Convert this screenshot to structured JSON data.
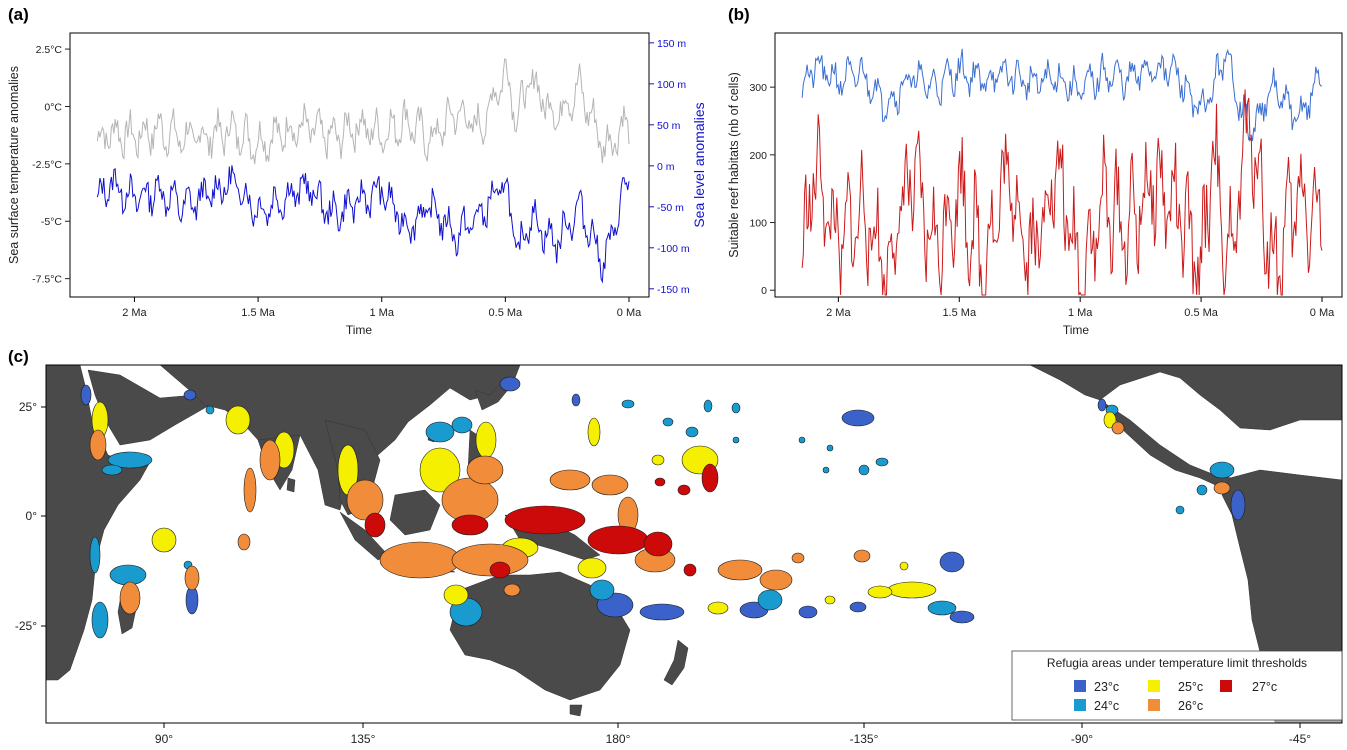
{
  "figure": {
    "panels": {
      "a": "(a)",
      "b": "(b)",
      "c": "(c)"
    }
  },
  "colors": {
    "sst": "#b5b5b5",
    "sea_level": "#1010d0",
    "land": "#4a4a4a",
    "land_light": "#a8a8a8",
    "t23": "#3a62c9",
    "t24": "#1a9bd0",
    "t25": "#f4f000",
    "t26": "#f08c3a",
    "t27": "#cc0a0a",
    "habitat_upper": "#3c6fd1",
    "habitat_lower": "#cc1a1a"
  },
  "chart_data": [
    {
      "id": "a",
      "type": "line",
      "xlabel": "Time",
      "ylabel": "Sea surface temperature anomalies",
      "y2label": "Sea level anomalies",
      "xticks": [
        "2 Ma",
        "1.5 Ma",
        "1 Ma",
        "0.5 Ma",
        "0 Ma"
      ],
      "xtick_values": [
        2,
        1.5,
        1,
        0.5,
        0
      ],
      "xlim": [
        2.2,
        0
      ],
      "yticks": [
        "2.5°C",
        "0°C",
        "-2.5°C",
        "-5°C",
        "-7.5°C"
      ],
      "ytick_values": [
        2.5,
        0,
        -2.5,
        -5,
        -7.5
      ],
      "ylim": [
        -8.3,
        3.2
      ],
      "y2ticks": [
        "150 m",
        "100 m",
        "50 m",
        "0 m",
        "-50 m",
        "-100 m",
        "-150 m"
      ],
      "y2tick_values": [
        150,
        100,
        50,
        0,
        -50,
        -100,
        -150
      ],
      "y2lim": [
        -160,
        162
      ],
      "series": [
        {
          "axis": "left",
          "color": "#b5b5b5",
          "x": [
            2.15,
            2.1,
            2.0,
            1.9,
            1.8,
            1.7,
            1.6,
            1.5,
            1.4,
            1.3,
            1.2,
            1.1,
            1.0,
            0.9,
            0.8,
            0.7,
            0.6,
            0.5,
            0.45,
            0.4,
            0.3,
            0.2,
            0.1,
            0.0
          ],
          "y": [
            -1.5,
            -1.1,
            -1.3,
            -1.0,
            -1.4,
            -1.3,
            -1.0,
            -1.6,
            -1.1,
            -0.9,
            -1.4,
            -0.8,
            -1.2,
            -0.6,
            -1.5,
            -0.2,
            -1.0,
            1.6,
            -0.5,
            1.2,
            -0.4,
            0.8,
            -1.8,
            -0.6
          ]
        },
        {
          "axis": "right",
          "color": "#1010d0",
          "x": [
            2.15,
            2.1,
            2.0,
            1.9,
            1.8,
            1.7,
            1.6,
            1.5,
            1.4,
            1.3,
            1.2,
            1.1,
            1.0,
            0.9,
            0.8,
            0.7,
            0.6,
            0.5,
            0.45,
            0.4,
            0.3,
            0.2,
            0.1,
            0.0
          ],
          "y": [
            -45,
            -20,
            -40,
            -30,
            -50,
            -35,
            -20,
            -55,
            -40,
            -25,
            -60,
            -45,
            -30,
            -75,
            -50,
            -85,
            -60,
            -20,
            -110,
            -60,
            -95,
            -50,
            -120,
            -10
          ]
        }
      ]
    },
    {
      "id": "b",
      "type": "line",
      "xlabel": "Time",
      "ylabel": "Suitable reef habitats (nb of cells)",
      "xticks": [
        "2 Ma",
        "1.5 Ma",
        "1 Ma",
        "0.5 Ma",
        "0 Ma"
      ],
      "xtick_values": [
        2,
        1.5,
        1,
        0.5,
        0
      ],
      "xlim": [
        2.2,
        0
      ],
      "yticks": [
        "0",
        "100",
        "200",
        "300"
      ],
      "ytick_values": [
        0,
        100,
        200,
        300
      ],
      "ylim": [
        -10,
        380
      ],
      "series": [
        {
          "color": "#3c6fd1",
          "x": [
            2.15,
            2.1,
            2.0,
            1.9,
            1.8,
            1.7,
            1.6,
            1.5,
            1.4,
            1.3,
            1.2,
            1.1,
            1.0,
            0.9,
            0.8,
            0.7,
            0.6,
            0.5,
            0.45,
            0.4,
            0.3,
            0.2,
            0.1,
            0.0
          ],
          "y": [
            300,
            330,
            310,
            320,
            275,
            315,
            300,
            325,
            310,
            320,
            305,
            315,
            295,
            320,
            310,
            330,
            320,
            260,
            300,
            350,
            230,
            300,
            250,
            320
          ]
        },
        {
          "color": "#cc1a1a",
          "x": [
            2.15,
            2.1,
            2.0,
            1.9,
            1.8,
            1.7,
            1.6,
            1.5,
            1.4,
            1.3,
            1.2,
            1.1,
            1.0,
            0.9,
            0.8,
            0.7,
            0.6,
            0.5,
            0.45,
            0.4,
            0.3,
            0.2,
            0.1,
            0.0
          ],
          "y": [
            30,
            190,
            60,
            120,
            30,
            170,
            60,
            150,
            40,
            170,
            50,
            180,
            20,
            130,
            90,
            160,
            120,
            20,
            230,
            10,
            250,
            30,
            140,
            100
          ]
        }
      ]
    }
  ],
  "map": {
    "xticks": [
      "90°",
      "135°",
      "180°",
      "-135°",
      "-90°",
      "-45°"
    ],
    "xtick_values": [
      90,
      135,
      180,
      -135,
      -90,
      -45
    ],
    "yticks": [
      "25°",
      "0°",
      "-25°"
    ],
    "ytick_values": [
      25,
      0,
      -25
    ],
    "legend": {
      "title": "Refugia areas under temperature limit thresholds",
      "items": [
        {
          "label": "23°c",
          "color": "#3a62c9"
        },
        {
          "label": "24°c",
          "color": "#1a9bd0"
        },
        {
          "label": "25°c",
          "color": "#f4f000"
        },
        {
          "label": "26°c",
          "color": "#f08c3a"
        },
        {
          "label": "27°c",
          "color": "#cc0a0a"
        }
      ]
    }
  }
}
